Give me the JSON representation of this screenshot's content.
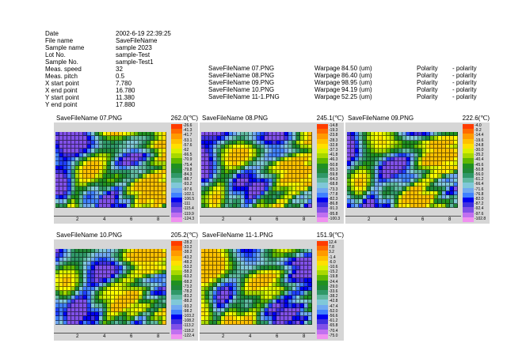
{
  "info": [
    {
      "label": "Date",
      "value": "2002-6-19 22:39:25"
    },
    {
      "label": "File name",
      "value": "SaveFileName"
    },
    {
      "label": "Sample name",
      "value": "sample 2023"
    },
    {
      "label": "Lot No.",
      "value": "sample-Test"
    },
    {
      "label": "Sample No.",
      "value": "sample-Test1"
    },
    {
      "label": "Meas. speed",
      "value": "32"
    },
    {
      "label": "Meas. pitch",
      "value": "0.5"
    },
    {
      "label": "X start point",
      "value": "7.780"
    },
    {
      "label": "X end point",
      "value": "16.780"
    },
    {
      "label": "Y start point",
      "value": "11.380"
    },
    {
      "label": "Y end point",
      "value": "17.880"
    }
  ],
  "files": [
    {
      "name": "SaveFileName 07.PNG",
      "warp_label": "Warpage",
      "warp": "84.50 (um)",
      "pol_label": "Polarity",
      "pol": "- polarity"
    },
    {
      "name": "SaveFileName 08.PNG",
      "warp_label": "Warpage",
      "warp": "86.40 (um)",
      "pol_label": "Polarity",
      "pol": "- polarity"
    },
    {
      "name": "SaveFileName 09.PNG",
      "warp_label": "Warpage",
      "warp": "98.95 (um)",
      "pol_label": "Polarity",
      "pol": "- polarity"
    },
    {
      "name": "SaveFileName 10.PNG",
      "warp_label": "Warpage",
      "warp": "94.19 (um)",
      "pol_label": "Polarity",
      "pol": "- polarity"
    },
    {
      "name": "SaveFileName 11-1.PNG",
      "warp_label": "Warpage",
      "warp": "52.25 (um)",
      "pol_label": "Polarity",
      "pol": "- polarity"
    }
  ],
  "panels": [
    {
      "title": "SaveFileName 07.PNG",
      "temp": "262.0(℃)",
      "ticks": [
        "2",
        "4",
        "6",
        "8"
      ],
      "scale": [
        "-26.6",
        "-41.3",
        "-41.7",
        "-53.1",
        "-57.6",
        "-62",
        "-66.5",
        "-70.9",
        "-75.4",
        "-79.8",
        "-84.3",
        "-88.7",
        "-93.2",
        "-97.6",
        "-102.1",
        "-106.5",
        "-111",
        "-115.4",
        "-119.9",
        "-124.3"
      ]
    },
    {
      "title": "SaveFileName 08.PNG",
      "temp": "245.1(℃)",
      "ticks": [
        "2",
        "4",
        "6",
        "8"
      ],
      "scale": [
        "-14.8",
        "-19.3",
        "-23.8",
        "-28.3",
        "-32.8",
        "-37.3",
        "-41.8",
        "-46.3",
        "-50.8",
        "-55.3",
        "-59.8",
        "-64.3",
        "-68.8",
        "-73.3",
        "-77.8",
        "-82.3",
        "-86.8",
        "-91.3",
        "-95.8",
        "-100.3"
      ]
    },
    {
      "title": "SaveFileName 09.PNG",
      "temp": "222.6(℃)",
      "ticks": [
        "2",
        "4",
        "6",
        "8"
      ],
      "scale": [
        "-4.0",
        "-9.2",
        "-14.4",
        "-19.6",
        "-24.8",
        "-30.0",
        "-35.2",
        "-40.4",
        "-45.6",
        "-50.8",
        "-56.0",
        "-61.2",
        "-66.4",
        "-71.6",
        "-76.8",
        "-82.0",
        "-87.2",
        "-92.4",
        "-97.6",
        "-102.8"
      ]
    },
    {
      "title": "SaveFileName 10.PNG",
      "temp": "205.2(℃)",
      "ticks": [
        "2",
        "4",
        "6",
        "8"
      ],
      "scale": [
        "-28.2",
        "-33.2",
        "-38.2",
        "-43.2",
        "-48.2",
        "-53.2",
        "-58.2",
        "-63.2",
        "-68.2",
        "-73.2",
        "-78.2",
        "-83.2",
        "-88.2",
        "-93.2",
        "-98.2",
        "-103.2",
        "-108.2",
        "-113.2",
        "-118.2",
        "-122.4"
      ]
    },
    {
      "title": "SaveFileName 11-1.PNG",
      "temp": "151.9(℃)",
      "ticks": [
        "2",
        "4",
        "6",
        "8"
      ],
      "scale": [
        "12.4",
        "7.8",
        "3.2",
        "-1.4",
        "-6.0",
        "-10.6",
        "-15.2",
        "-19.8",
        "-24.4",
        "-29.0",
        "-33.6",
        "-38.2",
        "-42.8",
        "-47.4",
        "-52.0",
        "-56.6",
        "-61.2",
        "-65.8",
        "-70.4",
        "-75.0"
      ]
    }
  ],
  "palette": [
    "#ff3c00",
    "#ff6a00",
    "#ff9a00",
    "#ffc000",
    "#ffe000",
    "#ffff00",
    "#d8f000",
    "#a8d800",
    "#60b800",
    "#209020",
    "#208838",
    "#309868",
    "#60b8a0",
    "#80c8d8",
    "#70a8f0",
    "#4080ff",
    "#2040ff",
    "#0000f0",
    "#4030e0",
    "#8050e8",
    "#c070f0",
    "#f090f0"
  ]
}
